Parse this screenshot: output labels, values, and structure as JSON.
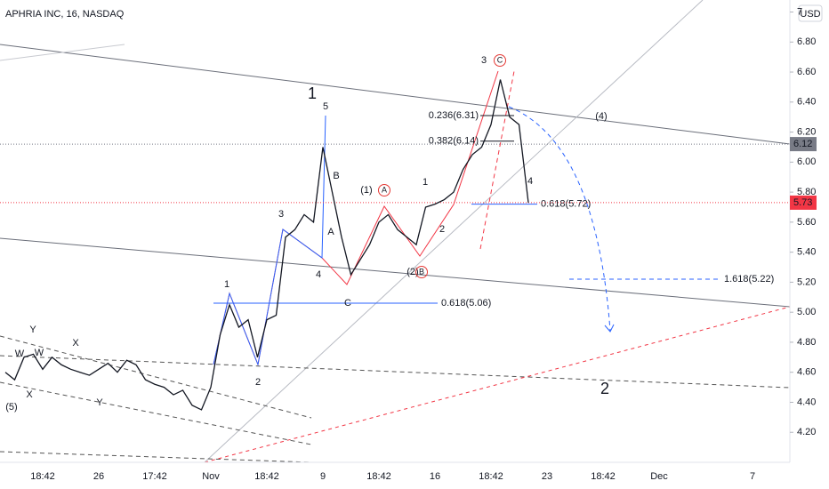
{
  "chart_data": {
    "type": "line",
    "title": "APHRIA INC, 16, NASDAQ",
    "currency": "USD",
    "color": "#131722",
    "categories": [
      null,
      null,
      null,
      null,
      "18:42",
      null,
      null,
      null,
      null,
      null,
      "26",
      null,
      null,
      null,
      null,
      null,
      "17:42",
      null,
      null,
      null,
      null,
      null,
      "Nov",
      null,
      null,
      null,
      null,
      null,
      "18:42",
      null,
      null,
      null,
      null,
      null,
      "9",
      null,
      null,
      null,
      null,
      null,
      "18:42",
      null,
      null,
      null,
      null,
      null,
      "16",
      null,
      null,
      null,
      null,
      null,
      "18:42",
      null,
      null,
      null,
      null,
      null,
      "23",
      null,
      null,
      null,
      null,
      null,
      "18:42",
      null,
      null,
      null,
      null,
      null,
      "Dec",
      null,
      null,
      null,
      null,
      null,
      null,
      null,
      null,
      null,
      "7",
      null,
      null,
      null
    ],
    "values": [
      4.6,
      4.55,
      4.7,
      4.72,
      4.62,
      4.7,
      4.65,
      4.62,
      4.6,
      4.58,
      4.62,
      4.66,
      4.6,
      4.68,
      4.65,
      4.55,
      4.52,
      4.5,
      4.45,
      4.48,
      4.38,
      4.35,
      4.5,
      4.85,
      5.05,
      4.9,
      4.95,
      4.7,
      4.95,
      4.98,
      5.5,
      5.55,
      5.65,
      5.6,
      6.1,
      5.8,
      5.5,
      5.25,
      5.35,
      5.45,
      5.6,
      5.65,
      5.55,
      5.5,
      5.45,
      5.7,
      5.72,
      5.75,
      5.8,
      5.95,
      6.05,
      6.1,
      6.25,
      6.55,
      6.3,
      6.25,
      5.73,
      null,
      null,
      null,
      null,
      null,
      null,
      null,
      null,
      null,
      null,
      null,
      null,
      null,
      null,
      null,
      null,
      null,
      null,
      null,
      null,
      null,
      null,
      null,
      null,
      null,
      null,
      null
    ],
    "ylim": [
      4.0,
      7.08
    ],
    "yticks": [
      {
        "value": 4.2,
        "label": "4.20"
      },
      {
        "value": 4.4,
        "label": "4.40"
      },
      {
        "value": 4.6,
        "label": "4.60"
      },
      {
        "value": 4.8,
        "label": "4.80"
      },
      {
        "value": 5.0,
        "label": "5.00"
      },
      {
        "value": 5.2,
        "label": "5.20"
      },
      {
        "value": 5.4,
        "label": "5.40"
      },
      {
        "value": 5.6,
        "label": "5.60"
      },
      {
        "value": 5.8,
        "label": "5.80"
      },
      {
        "value": 6.0,
        "label": "6.00"
      },
      {
        "value": 6.2,
        "label": "6.20"
      },
      {
        "value": 6.4,
        "label": "6.40"
      },
      {
        "value": 6.6,
        "label": "6.60"
      },
      {
        "value": 6.8,
        "label": "6.80"
      },
      7
    ],
    "price_marks": [
      {
        "value": 6.12,
        "label": "6.12",
        "color": "#787b86"
      },
      {
        "value": 5.73,
        "label": "5.73",
        "color": "#f23645"
      }
    ],
    "levels": [
      {
        "label": "0.236(6.31)",
        "value": 6.31,
        "color": "#131722"
      },
      {
        "label": "0.382(6.14)",
        "value": 6.14,
        "color": "#131722"
      },
      {
        "label": "0.618(5.72)",
        "value": 5.72,
        "color": "#2962ff"
      },
      {
        "label": "0.618(5.06)",
        "value": 5.06,
        "color": "#2962ff"
      },
      {
        "label": "1.618(5.22)",
        "value": 5.22,
        "color": "#2962ff"
      }
    ],
    "annotations": [
      {
        "text": "(5)",
        "color": "#2a4d9c"
      },
      {
        "text": "W",
        "color": "#e53935"
      },
      {
        "text": "X",
        "color": "#e53935"
      },
      {
        "text": "Y",
        "color": "#e53935"
      },
      {
        "text": "W",
        "color": "#2a4d9c"
      },
      {
        "text": "X",
        "color": "#2a4d9c"
      },
      {
        "text": "Y",
        "color": "#2a4d9c"
      },
      {
        "text": "1",
        "color": "#2a4d9c"
      },
      {
        "text": "2",
        "color": "#2a4d9c"
      },
      {
        "text": "3",
        "color": "#2a4d9c"
      },
      {
        "text": "4",
        "color": "#2a4d9c"
      },
      {
        "text": "5",
        "color": "#2a4d9c"
      },
      {
        "text": "1",
        "color": "#e53935"
      },
      {
        "text": "B",
        "color": "#e53935"
      },
      {
        "text": "A",
        "color": "#e53935"
      },
      {
        "text": "C",
        "color": "#e53935"
      },
      {
        "text": "(1)",
        "color": "#2196f3"
      },
      {
        "text": "A",
        "color": "#e53935"
      },
      {
        "text": "(2)",
        "color": "#2196f3"
      },
      {
        "text": "B",
        "color": "#e53935"
      },
      {
        "text": "1",
        "color": "#2196f3"
      },
      {
        "text": "2",
        "color": "#2196f3"
      },
      {
        "text": "3",
        "color": "#2196f3"
      },
      {
        "text": "C",
        "color": "#e53935"
      },
      {
        "text": "4",
        "color": "#2196f3"
      },
      {
        "text": "(4)",
        "color": "#2196f3"
      },
      {
        "text": "2",
        "color": "#e53935"
      }
    ]
  }
}
